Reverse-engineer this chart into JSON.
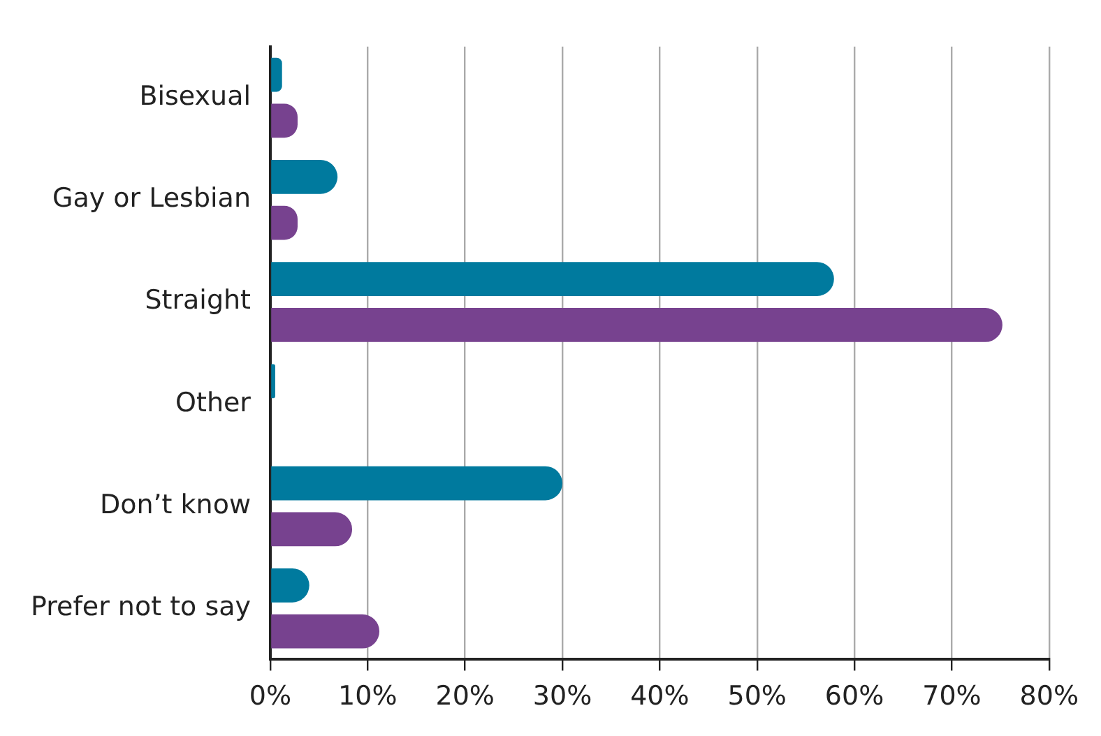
{
  "chart_data": {
    "type": "bar",
    "orientation": "horizontal",
    "categories": [
      "Bisexual",
      "Gay or Lesbian",
      "Straight",
      "Other",
      "Don’t know",
      "Prefer not to say"
    ],
    "series": [
      {
        "color": "#007a9e",
        "values": [
          1.2,
          6.9,
          57.9,
          0.5,
          30,
          4.0
        ]
      },
      {
        "color": "#77428f",
        "values": [
          2.8,
          2.8,
          75.2,
          0,
          8.4,
          11.2
        ]
      }
    ],
    "xlim": [
      0,
      80
    ],
    "xticks": [
      {
        "value": 0,
        "label": "0%"
      },
      {
        "value": 10,
        "label": "10%"
      },
      {
        "value": 20,
        "label": "20%"
      },
      {
        "value": 30,
        "label": "30%"
      },
      {
        "value": 40,
        "label": "40%"
      },
      {
        "value": 50,
        "label": "50%"
      },
      {
        "value": 60,
        "label": "60%"
      },
      {
        "value": 70,
        "label": "70%"
      },
      {
        "value": 80,
        "label": "80%"
      }
    ],
    "grid": "x",
    "legend": false
  }
}
